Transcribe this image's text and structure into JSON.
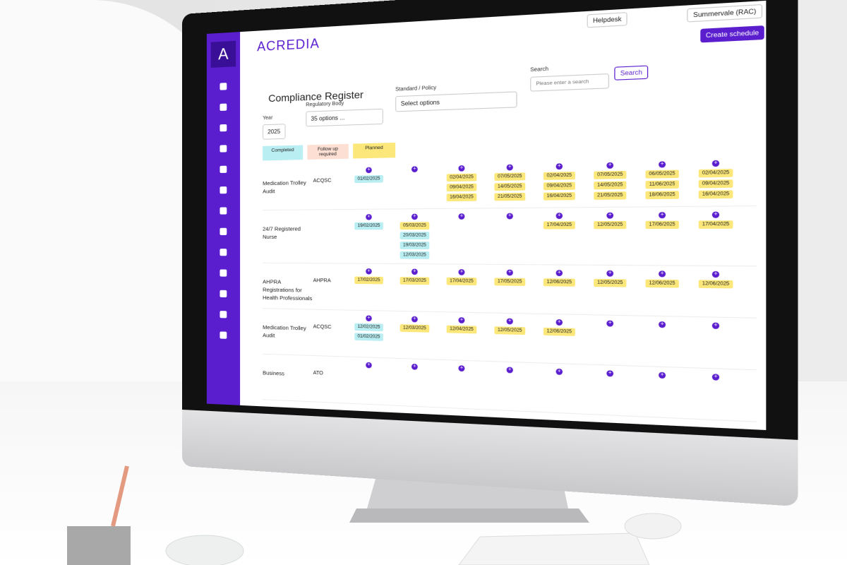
{
  "header": {
    "logo": "ACREDIA",
    "logo_letter": "A",
    "helpdesk": "Helpdesk",
    "location": "Summervale (RAC)",
    "create_button": "Create schedule"
  },
  "page": {
    "title": "Compliance Register"
  },
  "filters": {
    "year_label": "Year",
    "year_value": "2025",
    "regulatory_label": "Regulatory Body",
    "regulatory_value": "35 options ...",
    "standard_label": "Standard / Policy",
    "standard_placeholder": "Select options",
    "search_label": "Search",
    "search_placeholder": "Please enter a search",
    "search_button": "Search"
  },
  "legend": [
    {
      "label": "Completed",
      "color": "#b9eef2"
    },
    {
      "label": "Follow up required",
      "color": "#fde0d3"
    },
    {
      "label": "Planned",
      "color": "#fbe77a"
    }
  ],
  "table": {
    "rows": [
      {
        "name": "Medication Trolley Audit",
        "body": "ACQSC",
        "cells": [
          [
            {
              "date": "01/02/2025",
              "color": "#b9eef2"
            }
          ],
          [],
          [
            {
              "date": "02/04/2025",
              "color": "#fbe77a"
            },
            {
              "date": "09/04/2025",
              "color": "#fbe77a"
            },
            {
              "date": "16/04/2025",
              "color": "#fbe77a"
            }
          ],
          [
            {
              "date": "07/05/2025",
              "color": "#fbe77a"
            },
            {
              "date": "14/05/2025",
              "color": "#fbe77a"
            },
            {
              "date": "21/05/2025",
              "color": "#fbe77a"
            }
          ],
          [
            {
              "date": "02/04/2025",
              "color": "#fbe77a"
            },
            {
              "date": "09/04/2025",
              "color": "#fbe77a"
            },
            {
              "date": "16/04/2025",
              "color": "#fbe77a"
            }
          ],
          [
            {
              "date": "07/05/2025",
              "color": "#fbe77a"
            },
            {
              "date": "14/05/2025",
              "color": "#fbe77a"
            },
            {
              "date": "21/05/2025",
              "color": "#fbe77a"
            }
          ],
          [
            {
              "date": "06/05/2025",
              "color": "#fbe77a"
            },
            {
              "date": "11/06/2025",
              "color": "#fbe77a"
            },
            {
              "date": "18/06/2025",
              "color": "#fbe77a"
            }
          ],
          [
            {
              "date": "02/04/2025",
              "color": "#fbe77a"
            },
            {
              "date": "09/04/2025",
              "color": "#fbe77a"
            },
            {
              "date": "16/04/2025",
              "color": "#fbe77a"
            }
          ]
        ]
      },
      {
        "name": "24/7 Registered Nurse",
        "body": "",
        "cells": [
          [
            {
              "date": "19/02/2025",
              "color": "#b9eef2"
            }
          ],
          [
            {
              "date": "05/03/2025",
              "color": "#fbe77a"
            },
            {
              "date": "20/03/2025",
              "color": "#b9eef2"
            },
            {
              "date": "19/03/2025",
              "color": "#b9eef2"
            },
            {
              "date": "12/03/2025",
              "color": "#b9eef2"
            }
          ],
          [],
          [],
          [
            {
              "date": "17/04/2025",
              "color": "#fbe77a"
            }
          ],
          [
            {
              "date": "12/05/2025",
              "color": "#fbe77a"
            }
          ],
          [
            {
              "date": "17/06/2025",
              "color": "#fbe77a"
            }
          ],
          [
            {
              "date": "17/04/2025",
              "color": "#fbe77a"
            }
          ]
        ]
      },
      {
        "name": "AHPRA Registrations for Health Professionals",
        "body": "AHPRA",
        "cells": [
          [
            {
              "date": "17/02/2025",
              "color": "#fbe77a"
            }
          ],
          [
            {
              "date": "17/03/2025",
              "color": "#fbe77a"
            }
          ],
          [
            {
              "date": "17/04/2025",
              "color": "#fbe77a"
            }
          ],
          [
            {
              "date": "17/05/2025",
              "color": "#fbe77a"
            }
          ],
          [
            {
              "date": "12/06/2025",
              "color": "#fbe77a"
            }
          ],
          [
            {
              "date": "12/05/2025",
              "color": "#fbe77a"
            }
          ],
          [
            {
              "date": "12/06/2025",
              "color": "#fbe77a"
            }
          ],
          [
            {
              "date": "12/06/2025",
              "color": "#fbe77a"
            }
          ]
        ]
      },
      {
        "name": "Medication Trolley Audit",
        "body": "ACQSC",
        "cells": [
          [
            {
              "date": "12/02/2025",
              "color": "#b9eef2"
            },
            {
              "date": "01/02/2025",
              "color": "#b9eef2"
            }
          ],
          [
            {
              "date": "12/03/2025",
              "color": "#fbe77a"
            }
          ],
          [
            {
              "date": "12/04/2025",
              "color": "#fbe77a"
            }
          ],
          [
            {
              "date": "12/05/2025",
              "color": "#fbe77a"
            }
          ],
          [
            {
              "date": "12/06/2025",
              "color": "#fbe77a"
            }
          ],
          [],
          [],
          []
        ]
      },
      {
        "name": "Business",
        "body": "ATO",
        "cells": [
          [],
          [],
          [],
          [],
          [],
          [],
          [],
          []
        ]
      }
    ]
  }
}
